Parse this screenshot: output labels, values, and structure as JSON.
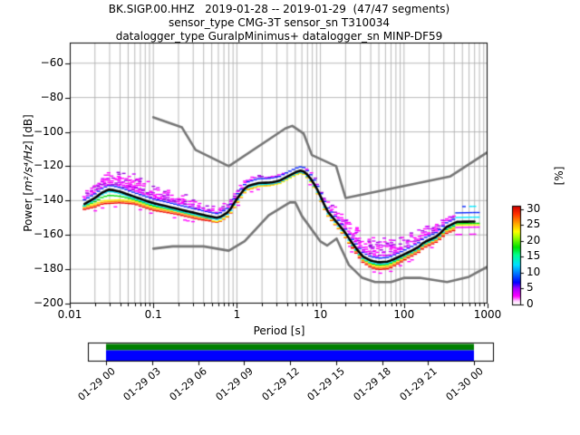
{
  "figure": {
    "title_line1": "BK.SIGP.00.HHZ   2019-01-28 -- 2019-01-29  (47/47 segments)",
    "title_line2": "sensor_type CMG-3T sensor_sn T310034",
    "title_line3": "datalogger_type GuralpMinimus+ datalogger_sn MINP-DF59"
  },
  "axes": {
    "xlabel": "Period [s]",
    "ylabel_pre": "Power [",
    "ylabel_math": "m²/s⁴/Hz",
    "ylabel_post": "] [dB]",
    "x_ticks": [
      {
        "label": "0.01",
        "value": 0.01
      },
      {
        "label": "0.1",
        "value": 0.1
      },
      {
        "label": "1",
        "value": 1
      },
      {
        "label": "10",
        "value": 10
      },
      {
        "label": "100",
        "value": 100
      },
      {
        "label": "1000",
        "value": 1000
      }
    ],
    "y_ticks": [
      {
        "label": "−200",
        "value": -200
      },
      {
        "label": "−180",
        "value": -180
      },
      {
        "label": "−160",
        "value": -160
      },
      {
        "label": "−140",
        "value": -140
      },
      {
        "label": "−120",
        "value": -120
      },
      {
        "label": "−100",
        "value": -100
      },
      {
        "label": "−80",
        "value": -80
      },
      {
        "label": "−60",
        "value": -60
      }
    ],
    "xlim": [
      0.01,
      1000
    ],
    "ylim": [
      -200,
      -48
    ],
    "grid_color": "#b0b0b0"
  },
  "colorbar": {
    "label": "[%]",
    "ticks": [
      {
        "label": "0",
        "value": 0
      },
      {
        "label": "5",
        "value": 5
      },
      {
        "label": "10",
        "value": 10
      },
      {
        "label": "15",
        "value": 15
      },
      {
        "label": "20",
        "value": 20
      },
      {
        "label": "25",
        "value": 25
      },
      {
        "label": "30",
        "value": 30
      }
    ],
    "vmin": 0,
    "vmax": 31,
    "stops": [
      [
        0.0,
        "#ffffff"
      ],
      [
        0.03,
        "#ffd0ff"
      ],
      [
        0.08,
        "#ff00ff"
      ],
      [
        0.16,
        "#a000ff"
      ],
      [
        0.22,
        "#0000ff"
      ],
      [
        0.32,
        "#0080ff"
      ],
      [
        0.4,
        "#00e0ff"
      ],
      [
        0.5,
        "#00ff90"
      ],
      [
        0.58,
        "#00e000"
      ],
      [
        0.68,
        "#a0ff00"
      ],
      [
        0.74,
        "#ffff00"
      ],
      [
        0.84,
        "#ff9000"
      ],
      [
        0.92,
        "#ff3000"
      ],
      [
        1.0,
        "#d00000"
      ]
    ]
  },
  "timeline": {
    "tick_labels": [
      "01-29 00",
      "01-29 03",
      "01-29 06",
      "01-29 09",
      "01-29 12",
      "01-29 15",
      "01-29 18",
      "01-29 21",
      "01-30 00"
    ],
    "coverage_top_color": "#008000",
    "coverage_bottom_color": "#0000ff"
  },
  "chart_data": {
    "type": "heatmap",
    "title": "BK.SIGP.00.HHZ 2019-01-28 -- 2019-01-29 (47/47 segments)",
    "xlabel": "Period [s]",
    "ylabel": "Power [m²/s⁴/Hz] [dB]",
    "x_scale": "log",
    "xlim": [
      0.01,
      1000
    ],
    "ylim": [
      -200,
      -48
    ],
    "colorbar_label": "[%]",
    "colorbar_range": [
      0,
      31
    ],
    "mode_curve": {
      "period": [
        0.015,
        0.02,
        0.025,
        0.03,
        0.04,
        0.05,
        0.07,
        0.1,
        0.15,
        0.22,
        0.3,
        0.45,
        0.6,
        0.8,
        1.0,
        1.3,
        1.8,
        2.5,
        3.2,
        4.2,
        5.6,
        6.5,
        8.0,
        9.5,
        12,
        15,
        19,
        25,
        32,
        40,
        50,
        65,
        90,
        120,
        150,
        170,
        250,
        320,
        430,
        700
      ],
      "db": [
        -142,
        -138.5,
        -135,
        -133.5,
        -134.8,
        -136.5,
        -139,
        -141.5,
        -143.5,
        -145.5,
        -147,
        -149,
        -150.2,
        -146.5,
        -139,
        -131.8,
        -129.8,
        -129.5,
        -128.5,
        -125.5,
        -122.4,
        -123.2,
        -128.5,
        -135,
        -146,
        -151.5,
        -157.5,
        -166,
        -172.5,
        -175,
        -176,
        -175.5,
        -172.5,
        -169.5,
        -167,
        -164.5,
        -160.8,
        -155.5,
        -152.4,
        -152.2
      ]
    },
    "spread": {
      "period": [
        0.015,
        0.03,
        0.06,
        0.1,
        0.2,
        0.35,
        0.6,
        1.0,
        1.6,
        3,
        5.6,
        8,
        10,
        14,
        20,
        30,
        45,
        70,
        110,
        170,
        260,
        400,
        550,
        800
      ],
      "up": [
        6,
        12,
        13,
        11,
        9,
        8,
        6,
        6,
        4,
        3,
        2.5,
        3,
        4,
        8,
        11,
        13,
        14,
        13,
        11,
        9,
        8,
        7,
        7,
        7
      ],
      "down": [
        4,
        9,
        5,
        5,
        4,
        4,
        3,
        3,
        2.5,
        2,
        2,
        2,
        2.5,
        3,
        3,
        4,
        5,
        5,
        4,
        4,
        4,
        5,
        6,
        6
      ]
    },
    "noise_models": {
      "nhnm": {
        "period": [
          0.1,
          0.22,
          0.32,
          0.8,
          3.8,
          4.6,
          6.3,
          7.9,
          15.4,
          20,
          354.8,
          1000
        ],
        "db": [
          -91.5,
          -97.4,
          -110.5,
          -120.0,
          -98.0,
          -96.5,
          -101.0,
          -113.5,
          -120.0,
          -138.5,
          -126.0,
          -111.8
        ]
      },
      "nlnm": {
        "period": [
          0.1,
          0.17,
          0.4,
          0.8,
          1.24,
          2.4,
          4.3,
          5.0,
          6.0,
          10.0,
          12.0,
          15.6,
          21.9,
          31.6,
          45,
          70,
          101,
          154,
          328,
          600,
          1000
        ],
        "db": [
          -168.0,
          -166.7,
          -166.7,
          -169.2,
          -163.7,
          -148.6,
          -141.1,
          -141.1,
          -149.0,
          -163.8,
          -166.2,
          -162.1,
          -177.5,
          -185.0,
          -187.5,
          -187.5,
          -185.0,
          -185.0,
          -187.5,
          -184.4,
          -178.5
        ]
      }
    },
    "palette": {
      "red": "#ee0000",
      "orange": "#ff8c00",
      "yellow": "#fff200",
      "green": "#00dd00",
      "cyan": "#00e8ff",
      "blue": "#0022ff",
      "magenta": "#ff00ff",
      "violet": "#cc00ff",
      "purple": "#9900dd",
      "mode_line": "#000000",
      "noise_model": "#757575"
    },
    "coverage_bar": {
      "start": "01-29 00",
      "end": "01-30 00",
      "colors": [
        "#008000",
        "#0000ff"
      ]
    }
  }
}
